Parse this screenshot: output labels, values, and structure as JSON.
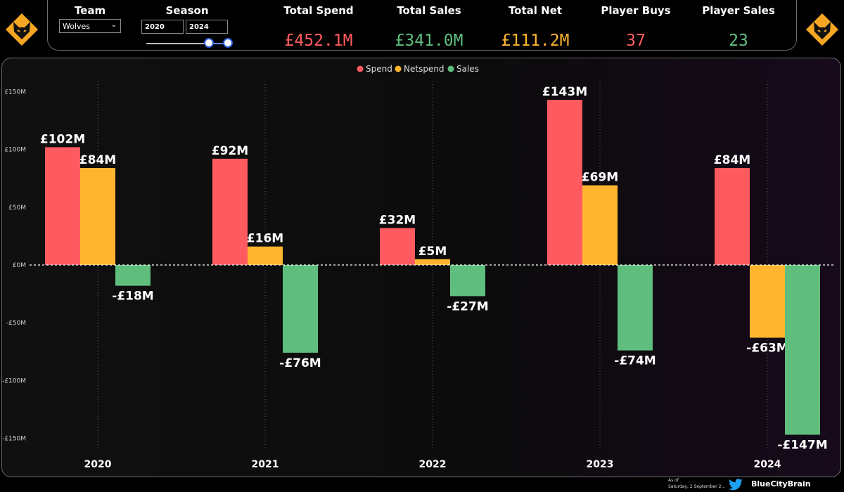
{
  "header": {
    "team_label": "Team",
    "team_value": "Wolves",
    "season_label": "Season",
    "season_start": "2020",
    "season_end": "2024",
    "kpis": [
      {
        "label": "Total Spend",
        "value": "£452.1M",
        "color": "#ff5a5f"
      },
      {
        "label": "Total Sales",
        "value": "£341.0M",
        "color": "#5fbe7d"
      },
      {
        "label": "Total Net",
        "value": "£111.2M",
        "color": "#ffb52e"
      },
      {
        "label": "Player Buys",
        "value": "37",
        "color": "#ff5a5f"
      },
      {
        "label": "Player Sales",
        "value": "23",
        "color": "#5fbe7d"
      }
    ]
  },
  "chart_data": {
    "type": "bar",
    "categories": [
      "2020",
      "2021",
      "2022",
      "2023",
      "2024"
    ],
    "series": [
      {
        "name": "Spend",
        "color": "#ff5a5f",
        "values": [
          102,
          92,
          32,
          143,
          84
        ],
        "labels": [
          "£102M",
          "£92M",
          "£32M",
          "£143M",
          "£84M"
        ]
      },
      {
        "name": "Netspend",
        "color": "#ffb52e",
        "values": [
          84,
          16,
          5,
          69,
          -63
        ],
        "labels": [
          "£84M",
          "£16M",
          "£5M",
          "£69M",
          "-£63M"
        ]
      },
      {
        "name": "Sales",
        "color": "#5fbe7d",
        "values": [
          -18,
          -76,
          -27,
          -74,
          -147
        ],
        "labels": [
          "-£18M",
          "-£76M",
          "-£27M",
          "-£74M",
          "-£147M"
        ]
      }
    ],
    "y_ticks": [
      150,
      100,
      50,
      0,
      -50,
      -100,
      -150
    ],
    "y_tick_labels": [
      "£150M",
      "£100M",
      "£50M",
      "£0M",
      "-£50M",
      "-£100M",
      "-£150M"
    ],
    "ylim": [
      -150,
      150
    ],
    "legend_position": "top-center"
  },
  "footer": {
    "asof_label": "As of",
    "asof_date": "Saturday, 2 September 2...",
    "handle": "BlueCityBrain"
  }
}
